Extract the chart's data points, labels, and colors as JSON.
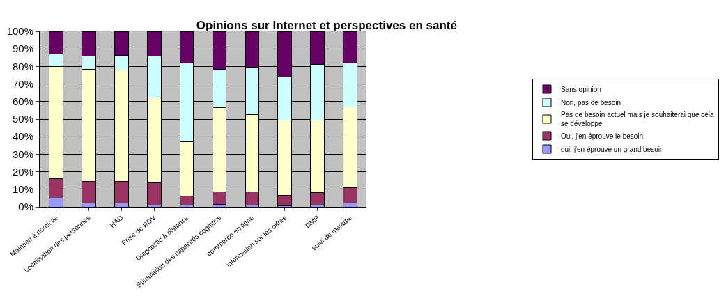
{
  "chart_data": {
    "type": "bar",
    "stacked": true,
    "title": "Opinions sur Internet et perspectives en santé",
    "categories": [
      "Maintien à domicile",
      "Localisation des personnes",
      "HAD",
      "Prise de RDV",
      "Diagnostic à distance",
      "Stimulation des capacités cognitivs",
      "commerce en ligne",
      "information sur les offres",
      "DMP",
      "suivi de maladie"
    ],
    "series": [
      {
        "name": "oui, j'en éprouve un grand besoin",
        "color": "#9999ff",
        "values": [
          5,
          2,
          2,
          1,
          1,
          1.5,
          1,
          0.5,
          1,
          2
        ]
      },
      {
        "name": "Oui, j'en éprouve le besoin",
        "color": "#993366",
        "values": [
          11,
          12.5,
          12.5,
          12.5,
          5,
          7,
          7.5,
          6,
          7,
          9
        ]
      },
      {
        "name": "Pas de besoin actuel mais je souhaiterai que cela se développe",
        "color": "#ffffcc",
        "values": [
          64,
          64,
          63.5,
          48.5,
          31,
          48,
          44,
          43,
          41.5,
          46
        ]
      },
      {
        "name": "Non, pas de besoin",
        "color": "#ccffff",
        "values": [
          7,
          7.5,
          8.5,
          24,
          45,
          22,
          27,
          24.5,
          31.5,
          25
        ]
      },
      {
        "name": "Sans opinion",
        "color": "#660066",
        "values": [
          13,
          14,
          13.5,
          14,
          18,
          21.5,
          20.5,
          26,
          19,
          18
        ]
      }
    ],
    "ylim": [
      0,
      100
    ],
    "yticks": [
      {
        "value": 0,
        "label": "0%"
      },
      {
        "value": 10,
        "label": "10%"
      },
      {
        "value": 20,
        "label": "20%"
      },
      {
        "value": 30,
        "label": "30%"
      },
      {
        "value": 40,
        "label": "40%"
      },
      {
        "value": 50,
        "label": "50%"
      },
      {
        "value": 60,
        "label": "60%"
      },
      {
        "value": 70,
        "label": "70%"
      },
      {
        "value": 80,
        "label": "80%"
      },
      {
        "value": 90,
        "label": "90%"
      },
      {
        "value": 100,
        "label": "100%"
      }
    ],
    "grid": "y",
    "legend": "right"
  }
}
